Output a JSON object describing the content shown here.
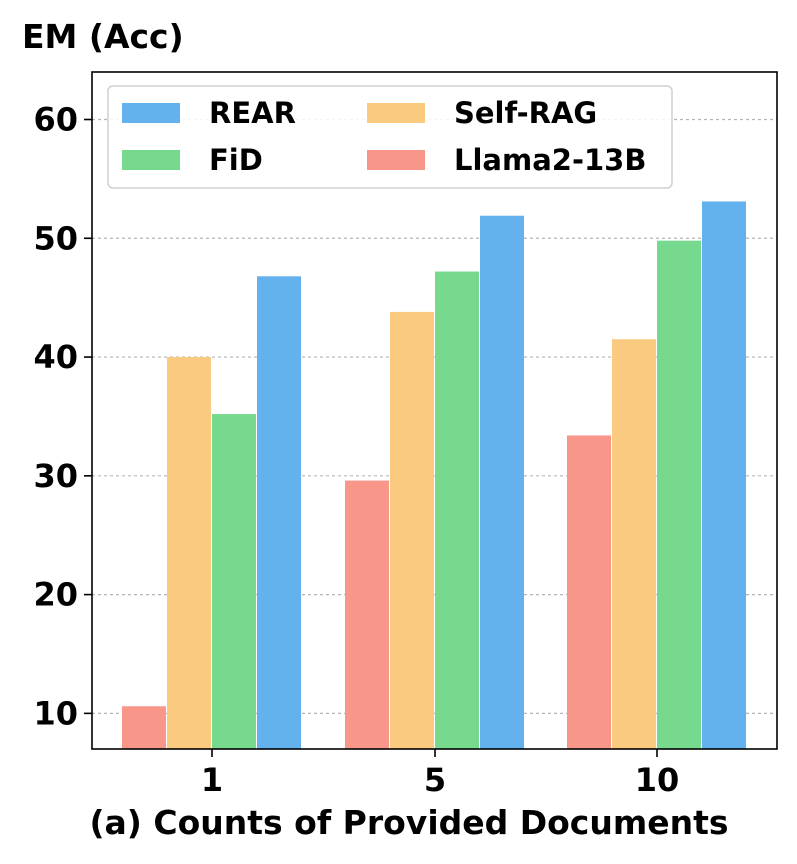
{
  "chart_data": {
    "type": "bar",
    "ylabel": "EM (Acc)",
    "xlabel": "(a) Counts of Provided Documents",
    "categories": [
      "1",
      "5",
      "10"
    ],
    "ylim": [
      7,
      64
    ],
    "yticks": [
      10,
      20,
      30,
      40,
      50,
      60
    ],
    "grid": "y-dashed",
    "legend_placement": "top-left",
    "series": [
      {
        "name": "Llama2-13B",
        "color": "#f8968a",
        "values": [
          10.6,
          29.6,
          33.4
        ]
      },
      {
        "name": "Self-RAG",
        "color": "#f9ca7f",
        "values": [
          40.0,
          43.8,
          41.5
        ]
      },
      {
        "name": "FiD",
        "color": "#77d98e",
        "values": [
          35.2,
          47.2,
          49.8
        ]
      },
      {
        "name": "REAR",
        "color": "#63b2ed",
        "values": [
          46.8,
          51.9,
          53.1
        ]
      }
    ],
    "legend_order": [
      "REAR",
      "Self-RAG",
      "FiD",
      "Llama2-13B"
    ]
  }
}
